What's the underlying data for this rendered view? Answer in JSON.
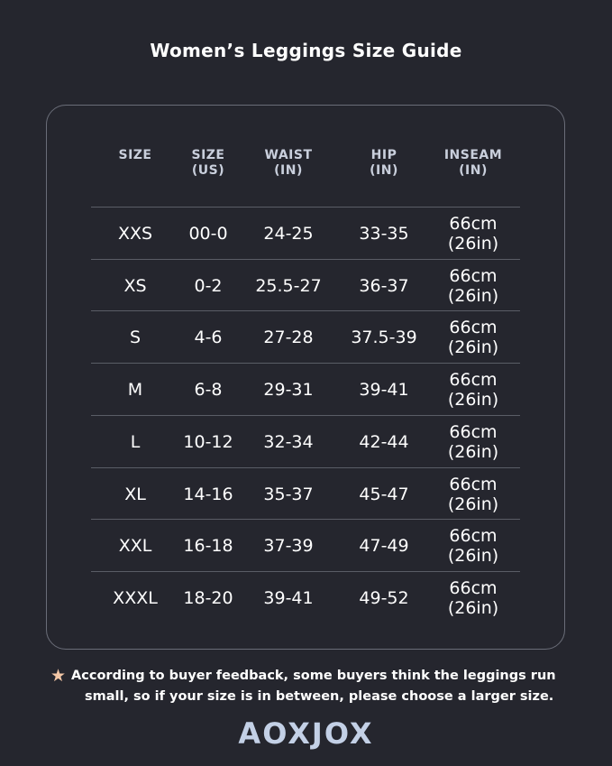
{
  "title": "Women’s Leggings Size Guide",
  "headers": [
    [
      "SIZE",
      ""
    ],
    [
      "SIZE",
      "(US)"
    ],
    [
      "WAIST",
      "(IN)"
    ],
    [
      "HIP",
      "(IN)"
    ],
    [
      "INSEAM",
      "(IN)"
    ]
  ],
  "rows": [
    [
      "XXS",
      "00-0",
      "24-25",
      "33-35",
      "66cm\n(26in)"
    ],
    [
      "XS",
      "0-2",
      "25.5-27",
      "36-37",
      "66cm\n(26in)"
    ],
    [
      "S",
      "4-6",
      "27-28",
      "37.5-39",
      "66cm\n(26in)"
    ],
    [
      "M",
      "6-8",
      "29-31",
      "39-41",
      "66cm\n(26in)"
    ],
    [
      "L",
      "10-12",
      "32-34",
      "42-44",
      "66cm\n(26in)"
    ],
    [
      "XL",
      "14-16",
      "35-37",
      "45-47",
      "66cm\n(26in)"
    ],
    [
      "XXL",
      "16-18",
      "37-39",
      "47-49",
      "66cm\n(26in)"
    ],
    [
      "XXXL",
      "18-20",
      "39-41",
      "49-52",
      "66cm\n(26in)"
    ]
  ],
  "note": {
    "icon": "star-icon",
    "line1": "According to buyer feedback, some buyers think the leggings run",
    "line2": "small, so if your size is in between, please choose a larger size."
  },
  "logo": "AOXJOX",
  "colors": {
    "background": "#25262e",
    "header": "#c9cfdc",
    "star": "#f3c7a6",
    "logo": "#c3d0e6"
  }
}
